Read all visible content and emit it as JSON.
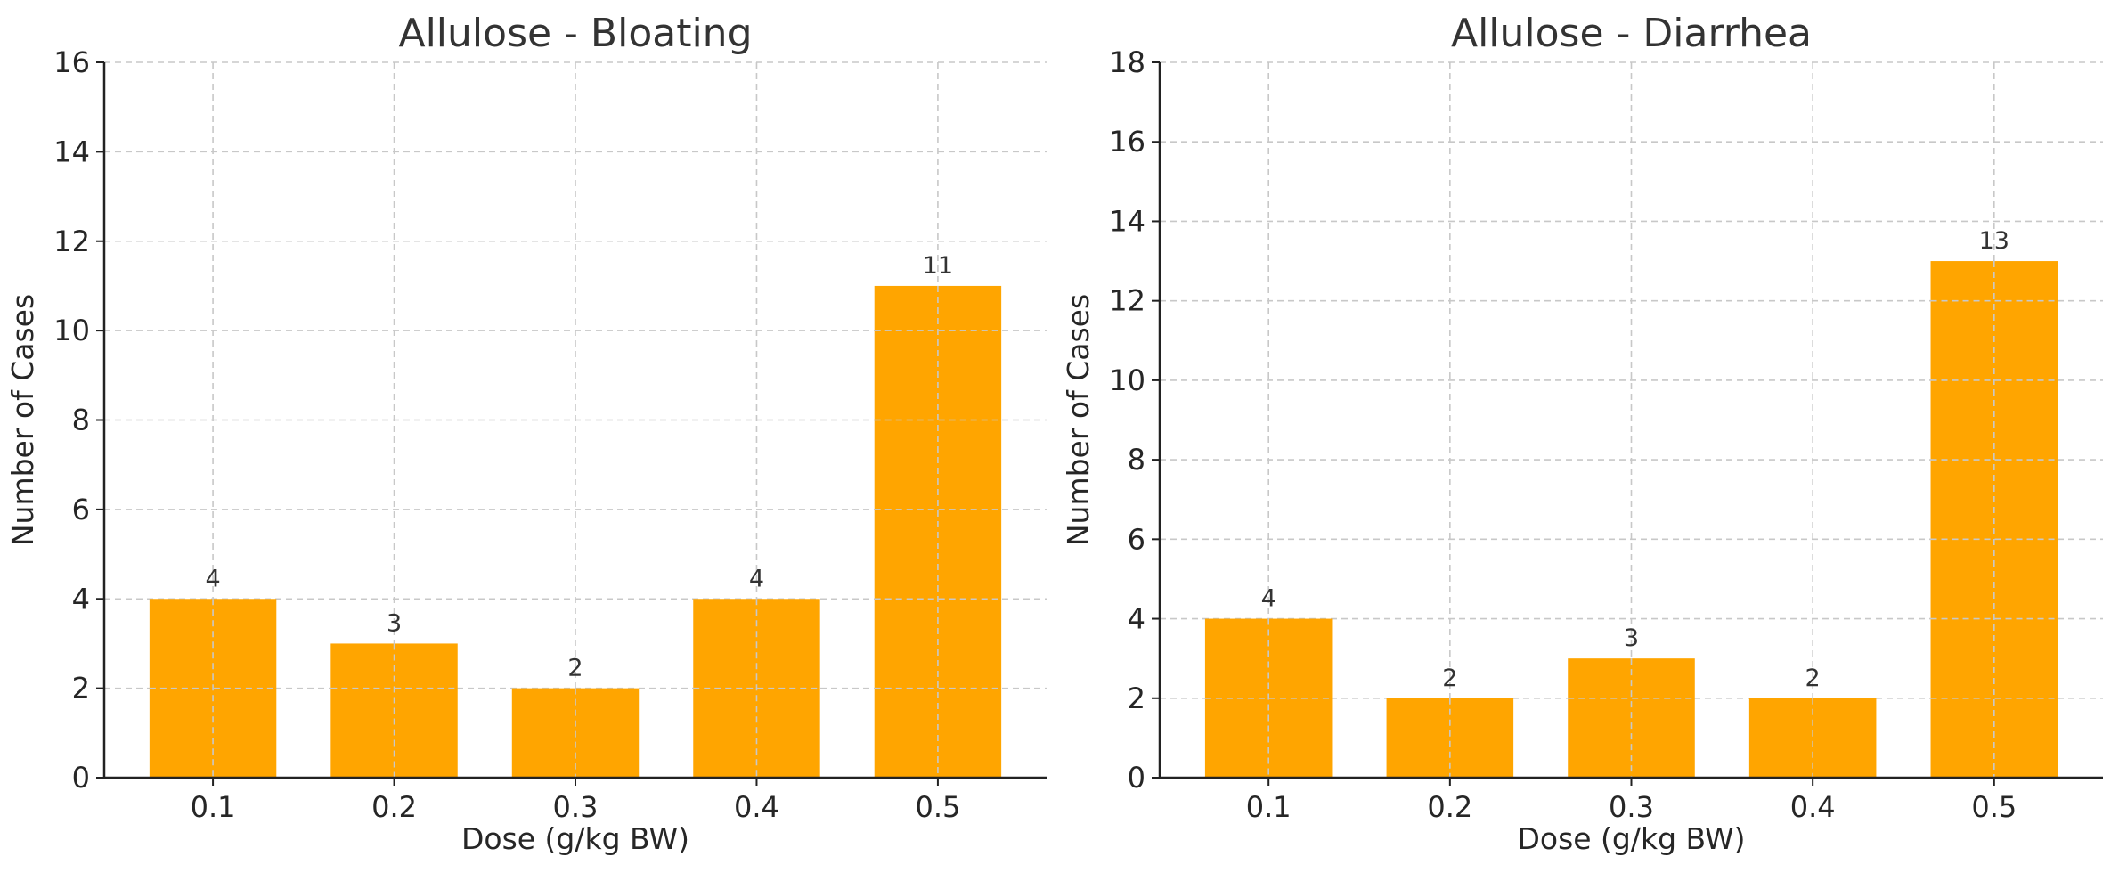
{
  "colors": {
    "bar": "#FFA500",
    "text": "#333333",
    "grid": "#c8c8c8",
    "axis": "#222222"
  },
  "chart_data": [
    {
      "type": "bar",
      "title": "Allulose - Bloating",
      "xlabel": "Dose (g/kg BW)",
      "ylabel": "Number of Cases",
      "categories": [
        "0.1",
        "0.2",
        "0.3",
        "0.4",
        "0.5"
      ],
      "values": [
        4,
        3,
        2,
        4,
        11
      ],
      "ylim": [
        0,
        16
      ],
      "yticks": [
        0,
        2,
        4,
        6,
        8,
        10,
        12,
        14,
        16
      ],
      "grid": true
    },
    {
      "type": "bar",
      "title": "Allulose - Diarrhea",
      "xlabel": "Dose (g/kg BW)",
      "ylabel": "Number of Cases",
      "categories": [
        "0.1",
        "0.2",
        "0.3",
        "0.4",
        "0.5"
      ],
      "values": [
        4,
        2,
        3,
        2,
        13
      ],
      "ylim": [
        0,
        18
      ],
      "yticks": [
        0,
        2,
        4,
        6,
        8,
        10,
        12,
        14,
        16,
        18
      ],
      "grid": true
    }
  ]
}
